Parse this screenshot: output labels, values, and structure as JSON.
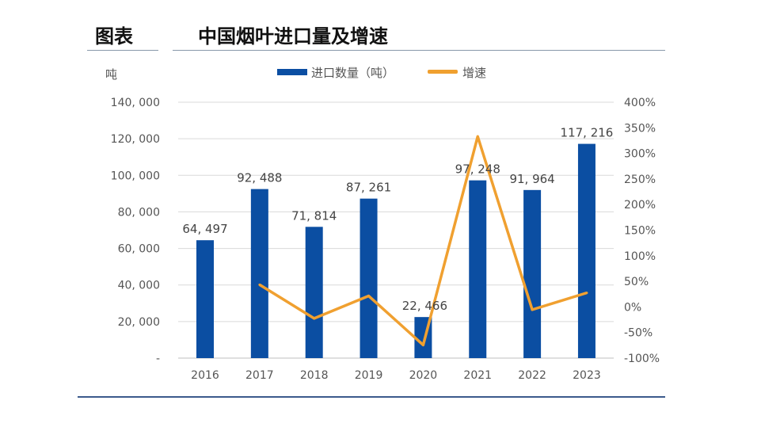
{
  "header": {
    "label": "图表",
    "title": "中国烟叶进口量及增速"
  },
  "chart_data": {
    "type": "bar+line",
    "title": "中国烟叶进口量及增速",
    "ylabel": "吨",
    "categories": [
      "2016",
      "2017",
      "2018",
      "2019",
      "2020",
      "2021",
      "2022",
      "2023"
    ],
    "series": [
      {
        "name": "进口数量（吨）",
        "type": "bar",
        "axis": "left",
        "values": [
          64497,
          92488,
          71814,
          87261,
          22466,
          97248,
          91964,
          117216
        ],
        "labels": [
          "64, 497",
          "92, 488",
          "71, 814",
          "87, 261",
          "22, 466",
          "97, 248",
          "91, 964",
          "117, 216"
        ],
        "color": "#0b4ea2"
      },
      {
        "name": "增速",
        "type": "line",
        "axis": "right",
        "values": [
          null,
          43.4,
          -22.4,
          21.5,
          -74.3,
          332.9,
          -5.4,
          27.5
        ],
        "color": "#f0a030"
      }
    ],
    "ylim_left": [
      0,
      140000
    ],
    "yticks_left": [
      "-",
      "20, 000",
      "40, 000",
      "60, 000",
      "80, 000",
      "100, 000",
      "120, 000",
      "140, 000"
    ],
    "ylim_right": [
      -100,
      400
    ],
    "yticks_right": [
      "-100%",
      "-50%",
      "0%",
      "50%",
      "100%",
      "150%",
      "200%",
      "250%",
      "300%",
      "350%",
      "400%"
    ],
    "grid": true,
    "legend": "top"
  }
}
